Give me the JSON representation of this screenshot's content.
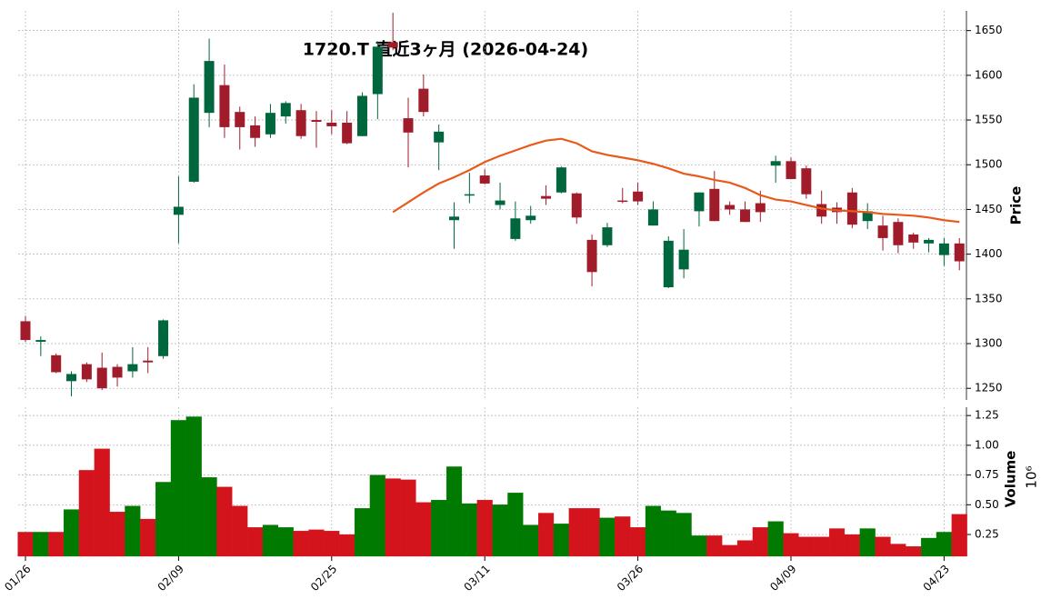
{
  "chart_data": [
    {
      "type": "candlestick",
      "title": "1720.T 直近3ヶ月 (2026-04-24)",
      "ylabel": "Price",
      "open": [
        1325,
        1302,
        1287,
        1258,
        1277,
        1273,
        1274,
        1269,
        1281,
        1286,
        1444,
        1481,
        1558,
        1589,
        1559,
        1544,
        1534,
        1554,
        1561,
        1550,
        1547,
        1547,
        1532,
        1579,
        1637,
        1552,
        1585,
        1525,
        1438,
        1466,
        1488,
        1455,
        1417,
        1438,
        1465,
        1469,
        1468,
        1416,
        1410,
        1460,
        1470,
        1432,
        1363,
        1383,
        1448,
        1473,
        1455,
        1450,
        1457,
        1499,
        1504,
        1496,
        1456,
        1452,
        1469,
        1437,
        1432,
        1436,
        1422,
        1412,
        1399,
        1412
      ],
      "high": [
        1331,
        1308,
        1289,
        1269,
        1279,
        1290,
        1277,
        1296,
        1296,
        1327,
        1487,
        1590,
        1641,
        1612,
        1565,
        1554,
        1568,
        1571,
        1568,
        1560,
        1561,
        1560,
        1581,
        1638,
        1670,
        1575,
        1601,
        1545,
        1458,
        1491,
        1495,
        1480,
        1459,
        1454,
        1477,
        1498,
        1469,
        1422,
        1435,
        1474,
        1480,
        1459,
        1420,
        1428,
        1469,
        1493,
        1459,
        1459,
        1471,
        1510,
        1508,
        1499,
        1471,
        1458,
        1474,
        1457,
        1443,
        1440,
        1424,
        1418,
        1418,
        1418
      ],
      "low": [
        1302,
        1286,
        1267,
        1241,
        1257,
        1248,
        1252,
        1262,
        1267,
        1283,
        1412,
        1480,
        1542,
        1530,
        1517,
        1520,
        1530,
        1546,
        1529,
        1519,
        1534,
        1523,
        1532,
        1551,
        1628,
        1497,
        1554,
        1494,
        1406,
        1457,
        1478,
        1450,
        1415,
        1434,
        1455,
        1468,
        1434,
        1364,
        1408,
        1457,
        1455,
        1432,
        1362,
        1373,
        1431,
        1437,
        1444,
        1436,
        1436,
        1480,
        1484,
        1462,
        1434,
        1434,
        1429,
        1428,
        1404,
        1401,
        1406,
        1402,
        1387,
        1382
      ],
      "close": [
        1304,
        1304,
        1268,
        1266,
        1260,
        1250,
        1262,
        1277,
        1279,
        1326,
        1453,
        1575,
        1616,
        1542,
        1542,
        1530,
        1558,
        1569,
        1532,
        1548,
        1543,
        1524,
        1577,
        1632,
        1631,
        1536,
        1559,
        1537,
        1442,
        1467,
        1479,
        1460,
        1440,
        1443,
        1462,
        1497,
        1441,
        1380,
        1430,
        1459,
        1459,
        1450,
        1415,
        1405,
        1469,
        1437,
        1450,
        1436,
        1447,
        1504,
        1484,
        1467,
        1442,
        1447,
        1433,
        1448,
        1418,
        1410,
        1413,
        1416,
        1412,
        1392
      ],
      "up_color": "#00663d",
      "down_color": "#a01c2a",
      "series": [
        {
          "type": "line",
          "color": "#e85a1a",
          "values": [
            null,
            null,
            null,
            null,
            null,
            null,
            null,
            null,
            null,
            null,
            null,
            null,
            null,
            null,
            null,
            null,
            null,
            null,
            null,
            null,
            null,
            null,
            null,
            null,
            1447,
            1458,
            1469,
            1479,
            1486,
            1494,
            1503,
            1510,
            1516,
            1522,
            1527,
            1529,
            1524,
            1515,
            1511,
            1508,
            1505,
            1501,
            1496,
            1490,
            1487,
            1483,
            1480,
            1474,
            1466,
            1461,
            1459,
            1455,
            1451,
            1449,
            1448,
            1447,
            1445,
            1444,
            1443,
            1441,
            1438,
            1436
          ]
        }
      ],
      "ylim": [
        1237,
        1672
      ],
      "yticks": [
        1250,
        1300,
        1350,
        1400,
        1450,
        1500,
        1550,
        1600,
        1650
      ],
      "grid": true
    },
    {
      "type": "bar",
      "ylabel": "Volume",
      "scale_label": "10⁶",
      "categories": [
        "01/26",
        null,
        null,
        null,
        null,
        null,
        null,
        null,
        null,
        null,
        "02/09",
        null,
        null,
        null,
        null,
        null,
        null,
        null,
        null,
        null,
        "02/25",
        null,
        null,
        null,
        null,
        null,
        null,
        null,
        null,
        null,
        "03/11",
        null,
        null,
        null,
        null,
        null,
        null,
        null,
        null,
        null,
        "03/26",
        null,
        null,
        null,
        null,
        null,
        null,
        null,
        null,
        null,
        "04/09",
        null,
        null,
        null,
        null,
        null,
        null,
        null,
        null,
        null,
        "04/23",
        null
      ],
      "values": [
        0.27,
        0.27,
        0.27,
        0.46,
        0.79,
        0.97,
        0.44,
        0.49,
        0.38,
        0.69,
        1.21,
        1.24,
        0.73,
        0.65,
        0.49,
        0.31,
        0.33,
        0.31,
        0.28,
        0.29,
        0.28,
        0.25,
        0.47,
        0.75,
        0.72,
        0.71,
        0.52,
        0.54,
        0.82,
        0.51,
        0.54,
        0.5,
        0.6,
        0.33,
        0.43,
        0.34,
        0.47,
        0.47,
        0.39,
        0.4,
        0.31,
        0.49,
        0.45,
        0.43,
        0.24,
        0.24,
        0.16,
        0.2,
        0.31,
        0.36,
        0.26,
        0.23,
        0.23,
        0.3,
        0.25,
        0.3,
        0.23,
        0.17,
        0.15,
        0.22,
        0.27,
        0.42
      ],
      "up_color": "#007a00",
      "down_color": "#d4141c",
      "ylim": [
        0.067,
        1.32
      ],
      "yticks": [
        0.25,
        {
          "value": 0.5,
          "label": "0.50"
        },
        0.75,
        {
          "value": 1,
          "label": "1.00"
        },
        1.25
      ],
      "grid": true
    }
  ]
}
